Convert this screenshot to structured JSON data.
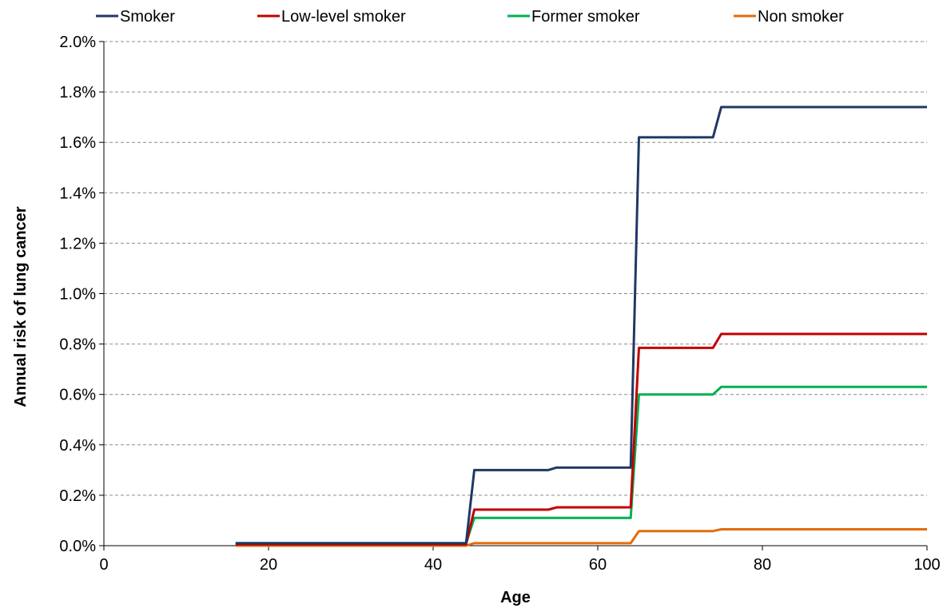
{
  "chart_data": {
    "type": "line",
    "xlabel": "Age",
    "ylabel": "Annual risk of lung cancer",
    "xlim": [
      0,
      100
    ],
    "ylim": [
      0,
      0.02
    ],
    "x_ticks": [
      0,
      20,
      40,
      60,
      80,
      100
    ],
    "x_tick_labels": [
      "0",
      "20",
      "40",
      "60",
      "80",
      "100"
    ],
    "y_ticks": [
      0,
      0.002,
      0.004,
      0.006,
      0.008,
      0.01,
      0.012,
      0.014,
      0.016,
      0.018,
      0.02
    ],
    "y_tick_labels": [
      "0.0%",
      "0.2%",
      "0.4%",
      "0.6%",
      "0.8%",
      "1.0%",
      "1.2%",
      "1.4%",
      "1.6%",
      "1.8%",
      "2.0%"
    ],
    "grid": "horizontal dashed",
    "legend": "top",
    "series": [
      {
        "name": "Smoker",
        "color": "#1f3864",
        "points": [
          [
            16,
            0.0001
          ],
          [
            44,
            0.0001
          ],
          [
            45,
            0.003
          ],
          [
            54,
            0.003
          ],
          [
            55,
            0.0031
          ],
          [
            64,
            0.0031
          ],
          [
            65,
            0.0162
          ],
          [
            74,
            0.0162
          ],
          [
            75,
            0.0174
          ],
          [
            100,
            0.0174
          ]
        ]
      },
      {
        "name": "Low-level smoker",
        "color": "#c00000",
        "points": [
          [
            16,
            5e-05
          ],
          [
            44,
            5e-05
          ],
          [
            45,
            0.00143
          ],
          [
            54,
            0.00143
          ],
          [
            55,
            0.00152
          ],
          [
            64,
            0.00152
          ],
          [
            65,
            0.00785
          ],
          [
            74,
            0.00785
          ],
          [
            75,
            0.0084
          ],
          [
            100,
            0.0084
          ]
        ]
      },
      {
        "name": "Former smoker",
        "color": "#00b050",
        "points": [
          [
            16,
            0.0001
          ],
          [
            44,
            0.0001
          ],
          [
            45,
            0.0011
          ],
          [
            64,
            0.0011
          ],
          [
            65,
            0.006
          ],
          [
            74,
            0.006
          ],
          [
            75,
            0.0063
          ],
          [
            100,
            0.0063
          ]
        ]
      },
      {
        "name": "Non smoker",
        "color": "#e36c09",
        "points": [
          [
            16,
            0.0
          ],
          [
            44,
            0.0
          ],
          [
            45,
            0.0001
          ],
          [
            64,
            0.0001
          ],
          [
            65,
            0.00058
          ],
          [
            74,
            0.00058
          ],
          [
            75,
            0.00065
          ],
          [
            100,
            0.00065
          ]
        ]
      }
    ]
  }
}
